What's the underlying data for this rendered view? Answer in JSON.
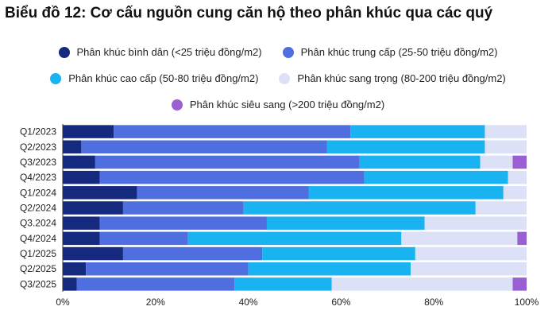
{
  "chart_data": {
    "type": "bar",
    "orientation": "horizontal",
    "stacked": true,
    "title": "Biểu đồ 12: Cơ cấu nguồn cung căn hộ theo phân khúc qua các quý",
    "categories": [
      "Q1/2023",
      "Q2/2023",
      "Q3/2023",
      "Q4/2023",
      "Q1/2024",
      "Q2/2024",
      "Q3.2024",
      "Q4/2024",
      "Q1/2025",
      "Q2/2025",
      "Q3/2025"
    ],
    "series": [
      {
        "name": "Phân khúc bình dân (<25 triệu đồng/m2)",
        "color": "#152a7e",
        "values": [
          11,
          4,
          7,
          8,
          16,
          13,
          8,
          8,
          13,
          5,
          3
        ]
      },
      {
        "name": "Phân khúc trung cấp (25-50 triệu đồng/m2)",
        "color": "#4f6ee0",
        "values": [
          51,
          53,
          57,
          57,
          37,
          26,
          36,
          19,
          30,
          35,
          34
        ]
      },
      {
        "name": "Phân khúc cao cấp (50-80 triệu đồng/m2)",
        "color": "#18b3f0",
        "values": [
          29,
          34,
          26,
          31,
          42,
          50,
          34,
          46,
          33,
          35,
          21
        ]
      },
      {
        "name": "Phân khúc sang trọng (80-200 triệu đồng/m2)",
        "color": "#dde1f7",
        "values": [
          9,
          9,
          7,
          4,
          5,
          11,
          22,
          25,
          24,
          25,
          39
        ]
      },
      {
        "name": "Phân khúc siêu sang (>200 triệu đồng/m2)",
        "color": "#9b5fd4",
        "values": [
          0,
          0,
          3,
          0,
          0,
          0,
          0,
          2,
          0,
          0,
          3
        ]
      }
    ],
    "xlim": [
      0,
      100
    ],
    "xticks": [
      "0%",
      "20%",
      "40%",
      "60%",
      "80%",
      "100%"
    ],
    "legend_position": "top",
    "grid": false
  }
}
